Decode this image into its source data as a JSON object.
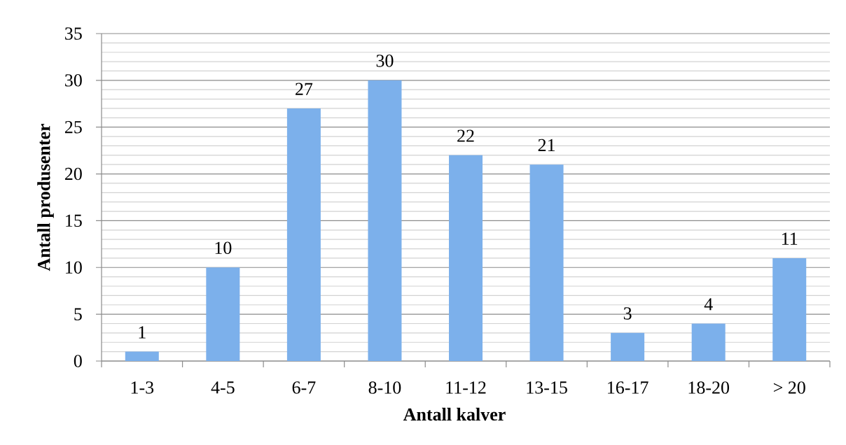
{
  "chart_data": {
    "type": "bar",
    "xlabel": "Antall kalver",
    "ylabel": "Antall produsenter",
    "categories": [
      "1-3",
      "4-5",
      "6-7",
      "8-10",
      "11-12",
      "13-15",
      "16-17",
      "18-20",
      "> 20"
    ],
    "values": [
      1,
      10,
      27,
      30,
      22,
      21,
      3,
      4,
      11
    ],
    "color": "#7cb0eb",
    "ylim": [
      0,
      35
    ],
    "yticks": [
      0,
      {
        "value": 1,
        "label": null
      },
      {
        "value": 2,
        "label": null
      },
      {
        "value": 3,
        "label": null
      },
      {
        "value": 4,
        "label": null
      },
      5,
      {
        "value": 6,
        "label": null
      },
      {
        "value": 7,
        "label": null
      },
      {
        "value": 8,
        "label": null
      },
      {
        "value": 9,
        "label": null
      },
      10,
      {
        "value": 11,
        "label": null
      },
      {
        "value": 12,
        "label": null
      },
      {
        "value": 13,
        "label": null
      },
      {
        "value": 14,
        "label": null
      },
      15,
      {
        "value": 16,
        "label": null
      },
      {
        "value": 17,
        "label": null
      },
      {
        "value": 18,
        "label": null
      },
      {
        "value": 19,
        "label": null
      },
      20,
      {
        "value": 21,
        "label": null
      },
      {
        "value": 22,
        "label": null
      },
      {
        "value": 23,
        "label": null
      },
      {
        "value": 24,
        "label": null
      },
      25,
      {
        "value": 26,
        "label": null
      },
      {
        "value": 27,
        "label": null
      },
      {
        "value": 28,
        "label": null
      },
      {
        "value": 29,
        "label": null
      },
      30,
      {
        "value": 31,
        "label": null
      },
      {
        "value": 32,
        "label": null
      },
      {
        "value": 33,
        "label": null
      },
      {
        "value": 34,
        "label": null
      },
      35
    ],
    "grid": "y",
    "data_labels": true
  }
}
